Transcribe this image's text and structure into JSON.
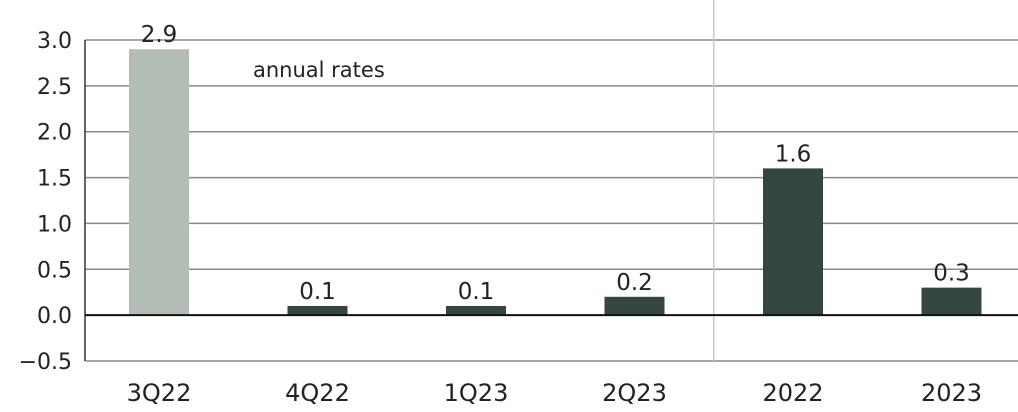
{
  "chart_data": {
    "type": "bar",
    "annotation": "annual rates",
    "categories": [
      "3Q22",
      "4Q22",
      "1Q23",
      "2Q23",
      "2022",
      "2023"
    ],
    "values": [
      2.9,
      0.1,
      0.1,
      0.2,
      1.6,
      0.3
    ],
    "value_labels": [
      "2.9",
      "0.1",
      "0.1",
      "0.2",
      "1.6",
      "0.3"
    ],
    "bar_colors": [
      "#b3bdb6",
      "#344640",
      "#344640",
      "#344640",
      "#344640",
      "#344640"
    ],
    "yticks": [
      "3.0",
      "2.5",
      "2.0",
      "1.5",
      "1.0",
      "0.5",
      "0.0",
      "−0.5"
    ],
    "ytick_values": [
      3.0,
      2.5,
      2.0,
      1.5,
      1.0,
      0.5,
      0.0,
      -0.5
    ],
    "ylim": [
      -0.5,
      3.0
    ],
    "grid": true,
    "gridline_color": "#8a8a8a",
    "separator_color": "#c8c8c8",
    "legend": "none"
  }
}
